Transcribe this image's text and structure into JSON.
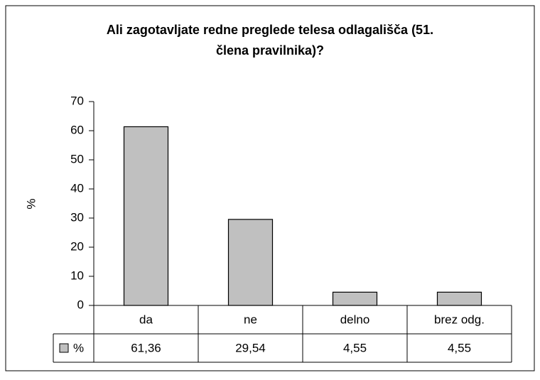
{
  "chart_data": {
    "type": "bar",
    "title": "Ali zagotavljate redne preglede telesa odlagališča (51. člena pravilnika)?",
    "title_lines": [
      "Ali zagotavljate redne preglede telesa odlagališča (51.",
      "člena pravilnika)?"
    ],
    "y_label": "%",
    "categories": [
      "da",
      "ne",
      "delno",
      "brez odg."
    ],
    "series": [
      {
        "name": "%",
        "color": "#c0c0c0",
        "values": [
          61.36,
          29.54,
          4.55,
          4.55
        ],
        "value_labels": [
          "61,36",
          "29,54",
          "4,55",
          "4,55"
        ]
      }
    ],
    "ylim": [
      0,
      70
    ],
    "yticks": [
      0,
      10,
      20,
      30,
      40,
      50,
      60,
      70
    ],
    "grid": false,
    "legend": "table"
  }
}
